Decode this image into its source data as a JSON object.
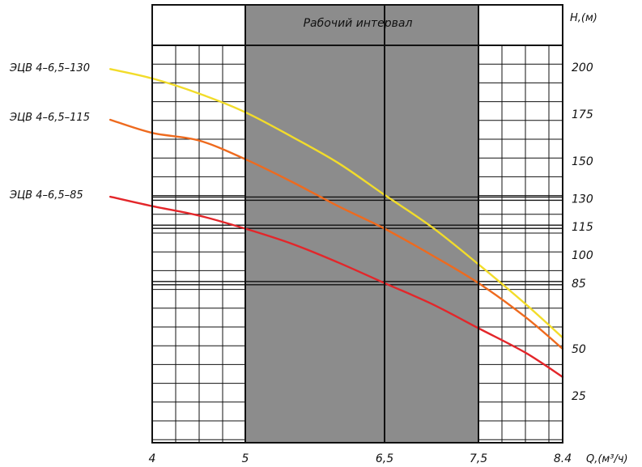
{
  "chart_data": {
    "type": "line",
    "working_range": {
      "label": "Рабочий интервал",
      "x": [
        5,
        7.5
      ],
      "fill": "#8c8c8c"
    },
    "xlabel": "Q,(м³/ч)",
    "ylabel": "H,(м)",
    "xlim": [
      4,
      8.4
    ],
    "ylim": [
      0,
      200
    ],
    "x_ticks": [
      4,
      5,
      6.5,
      7.5,
      8.4
    ],
    "x_tick_labels": [
      "4",
      "5",
      "6,5",
      "7,5",
      "8.4"
    ],
    "y_ticks": [
      25,
      50,
      85,
      100,
      115,
      130,
      150,
      175,
      200
    ],
    "y_tick_labels": [
      "25",
      "50",
      "85",
      "100",
      "115",
      "130",
      "150",
      "175",
      "200"
    ],
    "reference_lines": [
      85,
      115,
      130
    ],
    "grid": true,
    "series": [
      {
        "name": "ЭЦВ 4–6,5–130",
        "color": "#f2dc2a",
        "x": [
          3.55,
          4,
          4.5,
          5,
          5.5,
          6,
          6.5,
          7,
          7.5,
          8,
          8.4
        ],
        "y": [
          199,
          194,
          186,
          176,
          163,
          149,
          132,
          115,
          95,
          74,
          56
        ]
      },
      {
        "name": "ЭЦВ 4–6,5–115",
        "color": "#ee6a1e",
        "x": [
          3.55,
          4,
          4.5,
          5,
          5.5,
          6,
          6.5,
          7,
          7.5,
          8,
          8.4
        ],
        "y": [
          172,
          165,
          161,
          151,
          139,
          126,
          114,
          100,
          85,
          67,
          50
        ]
      },
      {
        "name": "ЭЦВ 4–6,5–85",
        "color": "#e3262a",
        "x": [
          3.55,
          4,
          4.5,
          5,
          5.5,
          6,
          6.5,
          7,
          7.5,
          8,
          8.4
        ],
        "y": [
          131,
          126,
          121,
          114,
          106,
          96,
          85,
          74,
          61,
          48,
          35
        ]
      }
    ]
  }
}
